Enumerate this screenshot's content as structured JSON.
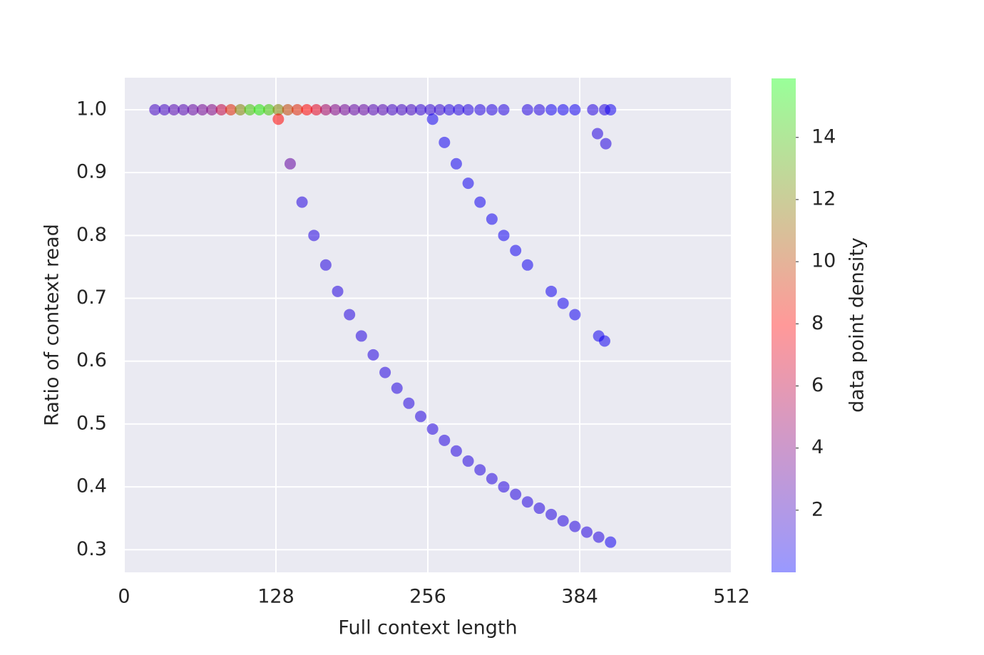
{
  "chart_data": {
    "type": "scatter",
    "x_label": "Full context length",
    "y_label": "Ratio of context read",
    "colorbar_label": "data point density",
    "xlim": [
      0,
      512
    ],
    "ylim": [
      0.264,
      1.051
    ],
    "xticks": [
      0,
      128,
      256,
      384,
      512
    ],
    "yticks": [
      0.3,
      0.4,
      0.5,
      0.6,
      0.7,
      0.8,
      0.9,
      {
        "value": 1,
        "label": "1.0"
      }
    ],
    "clim": [
      0,
      15.9
    ],
    "cticks": [
      2,
      4,
      6,
      8,
      10,
      12,
      14
    ],
    "colormap": [
      "#0000ff",
      "#ff0000",
      "#00ff00"
    ],
    "grid": true,
    "x": [
      26,
      34,
      42,
      50,
      58,
      66,
      74,
      82,
      90,
      98,
      106,
      114,
      122,
      130,
      138,
      146,
      154,
      162,
      170,
      178,
      186,
      194,
      202,
      210,
      218,
      226,
      234,
      242,
      250,
      258,
      266,
      274,
      282,
      290,
      300,
      310,
      320,
      340,
      350,
      360,
      370,
      380,
      395,
      405,
      410,
      130,
      140,
      150,
      160,
      170,
      180,
      190,
      200,
      210,
      220,
      230,
      240,
      250,
      260,
      270,
      280,
      290,
      300,
      310,
      320,
      330,
      340,
      350,
      360,
      370,
      380,
      390,
      400,
      410,
      260,
      270,
      280,
      290,
      300,
      310,
      320,
      330,
      340,
      360,
      370,
      380,
      400,
      405,
      399,
      406
    ],
    "y": [
      1,
      1,
      1,
      1,
      1,
      1,
      1,
      1,
      1,
      1,
      1,
      1,
      1,
      1,
      1,
      1,
      1,
      1,
      1,
      1,
      1,
      1,
      1,
      1,
      1,
      1,
      1,
      1,
      1,
      1,
      1,
      1,
      1,
      1,
      1,
      1,
      1,
      1,
      1,
      1,
      1,
      1,
      1,
      1,
      1,
      0.985,
      0.914,
      0.853,
      0.8,
      0.753,
      0.711,
      0.674,
      0.64,
      0.61,
      0.582,
      0.557,
      0.533,
      0.512,
      0.492,
      0.474,
      0.457,
      0.441,
      0.427,
      0.413,
      0.4,
      0.388,
      0.376,
      0.366,
      0.356,
      0.346,
      0.337,
      0.328,
      0.32,
      0.312,
      0.985,
      0.948,
      0.914,
      0.883,
      0.853,
      0.826,
      0.8,
      0.776,
      0.753,
      0.711,
      0.692,
      0.674,
      0.64,
      0.632,
      0.962,
      0.946
    ],
    "density": [
      2,
      2,
      2.5,
      2.5,
      3,
      3.5,
      4,
      6,
      9,
      12,
      14,
      15,
      14,
      12,
      10,
      9,
      8,
      7,
      5,
      4,
      3.5,
      3,
      3,
      2.5,
      2.5,
      2,
      2,
      2,
      1.5,
      1.5,
      1.5,
      1,
      1,
      1,
      1,
      1,
      1,
      1,
      1,
      0.5,
      0.5,
      0.5,
      1,
      1,
      0.5,
      8,
      3,
      1,
      1,
      1,
      1,
      1,
      1,
      1,
      1,
      1,
      1,
      1,
      1,
      1,
      1,
      1,
      1,
      1,
      1,
      1,
      1,
      1,
      1,
      1,
      1,
      1,
      1,
      0.5,
      0.5,
      0.5,
      0.5,
      0.5,
      0.5,
      0.5,
      0.5,
      0.5,
      0.5,
      0.5,
      0.5,
      0.5,
      0.5,
      0.5,
      1,
      1
    ]
  }
}
